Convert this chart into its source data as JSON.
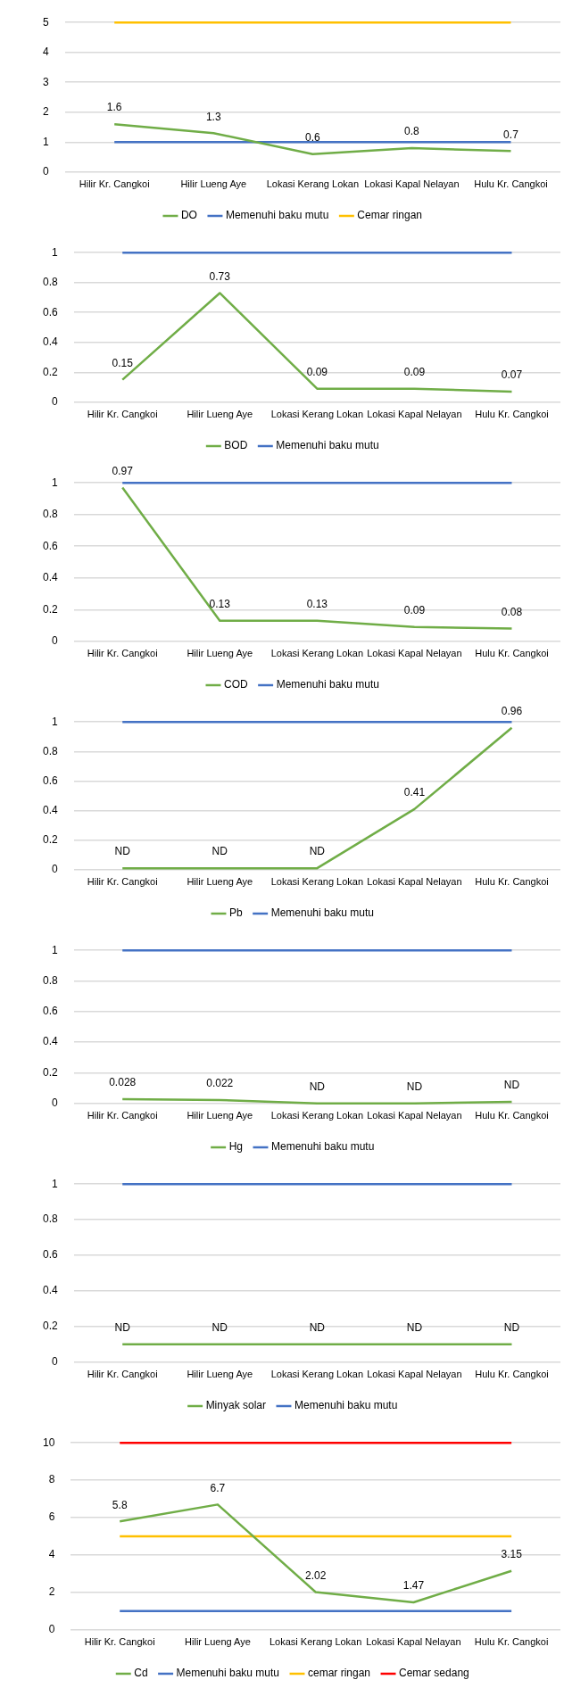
{
  "chart_data": [
    {
      "type": "line",
      "categories": [
        "Hilir Kr. Cangkoi",
        "Hilir Lueng Aye",
        "Lokasi Kerang Lokan",
        "Lokasi Kapal Nelayan",
        "Hulu Kr. Cangkoi"
      ],
      "series": [
        {
          "name": "DO",
          "color": "#70ad47",
          "values": [
            1.6,
            1.3,
            0.6,
            0.8,
            0.7
          ],
          "value_labels": [
            "1.6",
            "1.3",
            "0.6",
            "0.8",
            "0.7"
          ]
        },
        {
          "name": "Memenuhi baku mutu",
          "color": "#4472c4",
          "values": [
            1,
            1,
            1,
            1,
            1
          ]
        },
        {
          "name": "Cemar ringan",
          "color": "#ffc000",
          "values": [
            5,
            5,
            5,
            5,
            5
          ]
        }
      ],
      "ylim": [
        0,
        5
      ],
      "yticks": [
        0,
        1,
        2,
        3,
        4,
        5
      ],
      "grid": "y",
      "legend": "bottom",
      "marker": "none"
    },
    {
      "type": "line",
      "categories": [
        "Hilir Kr. Cangkoi",
        "Hilir Lueng Aye",
        "Lokasi Kerang Lokan",
        "Lokasi Kapal Nelayan",
        "Hulu Kr. Cangkoi"
      ],
      "series": [
        {
          "name": "BOD",
          "color": "#70ad47",
          "values": [
            0.15,
            0.73,
            0.09,
            0.09,
            0.07
          ],
          "value_labels": [
            "0.15",
            "0.73",
            "0.09",
            "0.09",
            "0.07"
          ]
        },
        {
          "name": "Memenuhi baku mutu",
          "color": "#4472c4",
          "values": [
            1,
            1,
            1,
            1,
            1
          ]
        }
      ],
      "ylim": [
        0,
        1
      ],
      "yticks": [
        0,
        0.2,
        0.4,
        0.6,
        0.8,
        1
      ],
      "grid": "y",
      "legend": "bottom",
      "marker": "none"
    },
    {
      "type": "line",
      "categories": [
        "Hilir Kr. Cangkoi",
        "Hilir Lueng Aye",
        "Lokasi Kerang Lokan",
        "Lokasi Kapal Nelayan",
        "Hulu Kr. Cangkoi"
      ],
      "series": [
        {
          "name": "COD",
          "color": "#70ad47",
          "values": [
            0.97,
            0.13,
            0.13,
            0.09,
            0.08
          ],
          "value_labels": [
            "0.97",
            "0.13",
            "0.13",
            "0.09",
            "0.08"
          ]
        },
        {
          "name": "Memenuhi baku mutu",
          "color": "#4472c4",
          "values": [
            1,
            1,
            1,
            1,
            1
          ]
        }
      ],
      "ylim": [
        0,
        1
      ],
      "yticks": [
        0,
        0.2,
        0.4,
        0.6,
        0.8,
        1
      ],
      "grid": "y",
      "legend": "bottom",
      "marker": "none"
    },
    {
      "type": "line",
      "categories": [
        "Hilir Kr. Cangkoi",
        "Hilir Lueng Aye",
        "Lokasi Kerang Lokan",
        "Lokasi Kapal Nelayan",
        "Hulu Kr. Cangkoi"
      ],
      "series": [
        {
          "name": "Pb",
          "color": "#70ad47",
          "values": [
            0.01,
            0.01,
            0.01,
            0.41,
            0.96
          ],
          "value_labels": [
            "ND",
            "ND",
            "ND",
            "0.41",
            "0.96"
          ]
        },
        {
          "name": "Memenuhi baku mutu",
          "color": "#4472c4",
          "values": [
            1,
            1,
            1,
            1,
            1
          ]
        }
      ],
      "ylim": [
        0,
        1
      ],
      "yticks": [
        0,
        0.2,
        0.4,
        0.6,
        0.8,
        1
      ],
      "grid": "y",
      "legend": "bottom",
      "marker": "none"
    },
    {
      "type": "line",
      "categories": [
        "Hilir Kr. Cangkoi",
        "Hilir Lueng Aye",
        "Lokasi Kerang Lokan",
        "Lokasi Kapal Nelayan",
        "Hulu Kr. Cangkoi"
      ],
      "series": [
        {
          "name": "Hg",
          "color": "#70ad47",
          "values": [
            0.028,
            0.022,
            0,
            0,
            0.01
          ],
          "value_labels": [
            "0.028",
            "0.022",
            "ND",
            "ND",
            "ND"
          ]
        },
        {
          "name": "Memenuhi baku mutu",
          "color": "#4472c4",
          "values": [
            1,
            1,
            1,
            1,
            1
          ]
        }
      ],
      "ylim": [
        0,
        1
      ],
      "yticks": [
        0,
        0.2,
        0.4,
        0.6,
        0.8,
        1
      ],
      "grid": "y",
      "legend": "bottom",
      "marker": "none"
    },
    {
      "type": "line",
      "categories": [
        "Hilir Kr. Cangkoi",
        "Hilir Lueng Aye",
        "Lokasi Kerang Lokan",
        "Lokasi Kapal Nelayan",
        "Hulu Kr. Cangkoi"
      ],
      "series": [
        {
          "name": "Minyak solar",
          "color": "#70ad47",
          "values": [
            0.1,
            0.1,
            0.1,
            0.1,
            0.1
          ],
          "value_labels": [
            "ND",
            "ND",
            "ND",
            "ND",
            "ND"
          ]
        },
        {
          "name": "Memenuhi baku mutu",
          "color": "#4472c4",
          "values": [
            1,
            1,
            1,
            1,
            1
          ]
        }
      ],
      "ylim": [
        0,
        1
      ],
      "yticks": [
        0,
        0.2,
        0.4,
        0.6,
        0.8,
        1
      ],
      "grid": "y",
      "legend": "bottom",
      "marker": "none"
    },
    {
      "type": "line",
      "categories": [
        "Hilir Kr. Cangkoi",
        "Hilir Lueng Aye",
        "Lokasi Kerang Lokan",
        "Lokasi Kapal Nelayan",
        "Hulu Kr. Cangkoi"
      ],
      "series": [
        {
          "name": "Cd",
          "color": "#70ad47",
          "values": [
            5.8,
            6.7,
            2.02,
            1.47,
            3.15
          ],
          "value_labels": [
            "5.8",
            "6.7",
            "2.02",
            "1.47",
            "3.15"
          ]
        },
        {
          "name": "Memenuhi baku mutu",
          "color": "#4472c4",
          "values": [
            1,
            1,
            1,
            1,
            1
          ]
        },
        {
          "name": "cemar ringan",
          "color": "#ffc000",
          "values": [
            5,
            5,
            5,
            5,
            5
          ]
        },
        {
          "name": "Cemar sedang",
          "color": "#ff0000",
          "values": [
            10,
            10,
            10,
            10,
            10
          ]
        }
      ],
      "ylim": [
        0,
        10
      ],
      "yticks": [
        0,
        2,
        4,
        6,
        8,
        10
      ],
      "grid": "y",
      "legend": "bottom",
      "marker": "none"
    }
  ]
}
